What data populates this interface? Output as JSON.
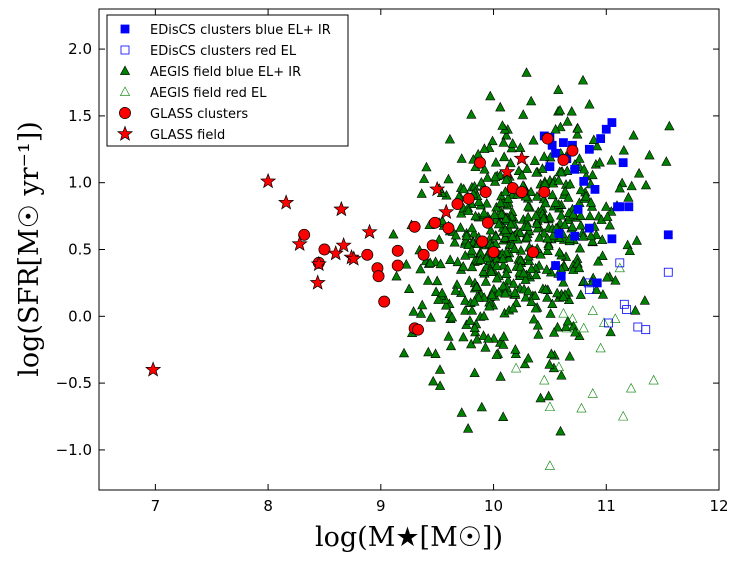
{
  "chart_data": {
    "type": "scatter",
    "title": "",
    "xlabel": "log(M★[M☉])",
    "ylabel": "log(SFR[M☉ yr⁻¹])",
    "xlim": [
      6.5,
      12.0
    ],
    "ylim": [
      -1.3,
      2.3
    ],
    "xticks": [
      7,
      8,
      9,
      10,
      11,
      12
    ],
    "yticks": [
      -1.0,
      -0.5,
      0.0,
      0.5,
      1.0,
      1.5,
      2.0
    ],
    "xtick_labels": [
      "7",
      "8",
      "9",
      "10",
      "11",
      "12"
    ],
    "ytick_labels": [
      "−1.0",
      "−0.5",
      "0.0",
      "0.5",
      "1.0",
      "1.5",
      "2.0"
    ],
    "legend_position": "upper-left",
    "series": [
      {
        "name": "EDisCS clusters blue EL+ IR",
        "marker": "square",
        "filled": true,
        "color": "#0000ff",
        "x": [
          10.45,
          10.5,
          10.52,
          10.55,
          10.62,
          10.72,
          10.8,
          10.85,
          10.9,
          10.95,
          11.0,
          11.05,
          11.1,
          11.15,
          10.58,
          10.55,
          10.6,
          10.72,
          10.85,
          10.92,
          11.05,
          11.12,
          11.55,
          11.2,
          10.7,
          10.75,
          10.5,
          10.65
        ],
        "y": [
          1.35,
          1.34,
          1.28,
          1.22,
          1.3,
          1.1,
          1.01,
          1.25,
          0.95,
          1.33,
          1.4,
          1.45,
          0.82,
          1.15,
          0.62,
          0.38,
          0.3,
          0.6,
          0.66,
          0.25,
          0.58,
          0.82,
          0.61,
          0.82,
          1.28,
          0.8,
          1.12,
          1.18
        ]
      },
      {
        "name": "EDisCS clusters red EL",
        "marker": "square",
        "filled": false,
        "color": "#0000ff",
        "x": [
          10.85,
          11.12,
          11.16,
          11.18,
          11.02,
          11.28,
          11.35,
          11.55,
          10.84
        ],
        "y": [
          0.2,
          0.4,
          0.09,
          0.05,
          -0.05,
          -0.08,
          -0.1,
          0.33,
          0.25
        ]
      },
      {
        "name": "AEGIS field blue EL+ IR",
        "marker": "triangle",
        "filled": true,
        "color": "#008000",
        "cloud": {
          "count": 560,
          "x_range": [
            9.1,
            11.75
          ],
          "y_range": [
            -1.15,
            1.84
          ],
          "center": [
            10.2,
            0.55
          ]
        }
      },
      {
        "name": "AEGIS field red EL",
        "marker": "triangle",
        "filled": false,
        "color": "#008000",
        "x": [
          10.2,
          10.45,
          10.5,
          10.5,
          10.58,
          10.62,
          10.65,
          10.72,
          10.78,
          10.8,
          10.88,
          10.95,
          10.98,
          11.08,
          11.12,
          11.15,
          11.22,
          11.42,
          10.7,
          10.88
        ],
        "y": [
          -0.39,
          -0.48,
          -0.68,
          -1.12,
          -0.38,
          0.02,
          -0.09,
          -0.09,
          -0.69,
          -0.09,
          0.04,
          -0.24,
          -0.05,
          -0.02,
          0.36,
          -0.75,
          -0.54,
          -0.48,
          -0.02,
          -0.58
        ]
      },
      {
        "name": "GLASS clusters",
        "marker": "circle",
        "filled": true,
        "color": "#ff0000",
        "x": [
          8.32,
          8.45,
          8.5,
          8.88,
          8.97,
          8.98,
          9.03,
          9.15,
          9.15,
          9.3,
          9.3,
          9.33,
          9.38,
          9.46,
          9.48,
          9.6,
          9.68,
          9.78,
          9.88,
          9.9,
          9.93,
          9.95,
          10.0,
          10.17,
          10.35,
          10.45,
          10.48,
          10.62,
          10.7,
          10.25
        ],
        "y": [
          0.61,
          0.4,
          0.5,
          0.46,
          0.36,
          0.3,
          0.11,
          0.49,
          0.38,
          0.67,
          -0.09,
          -0.1,
          0.46,
          0.53,
          0.7,
          0.66,
          0.84,
          0.88,
          1.15,
          0.56,
          0.93,
          0.7,
          0.48,
          0.96,
          0.48,
          0.93,
          1.33,
          1.17,
          1.24,
          0.93
        ]
      },
      {
        "name": "GLASS field",
        "marker": "star",
        "filled": true,
        "color": "#ff0000",
        "x": [
          6.98,
          8.0,
          8.16,
          8.28,
          8.44,
          8.45,
          8.6,
          8.65,
          8.67,
          8.74,
          8.76,
          9.5,
          10.12,
          10.25,
          9.58,
          8.9
        ],
        "y": [
          -0.4,
          1.01,
          0.85,
          0.54,
          0.25,
          0.39,
          0.47,
          0.8,
          0.53,
          0.44,
          0.43,
          0.95,
          1.08,
          1.18,
          0.78,
          0.63
        ]
      }
    ]
  }
}
